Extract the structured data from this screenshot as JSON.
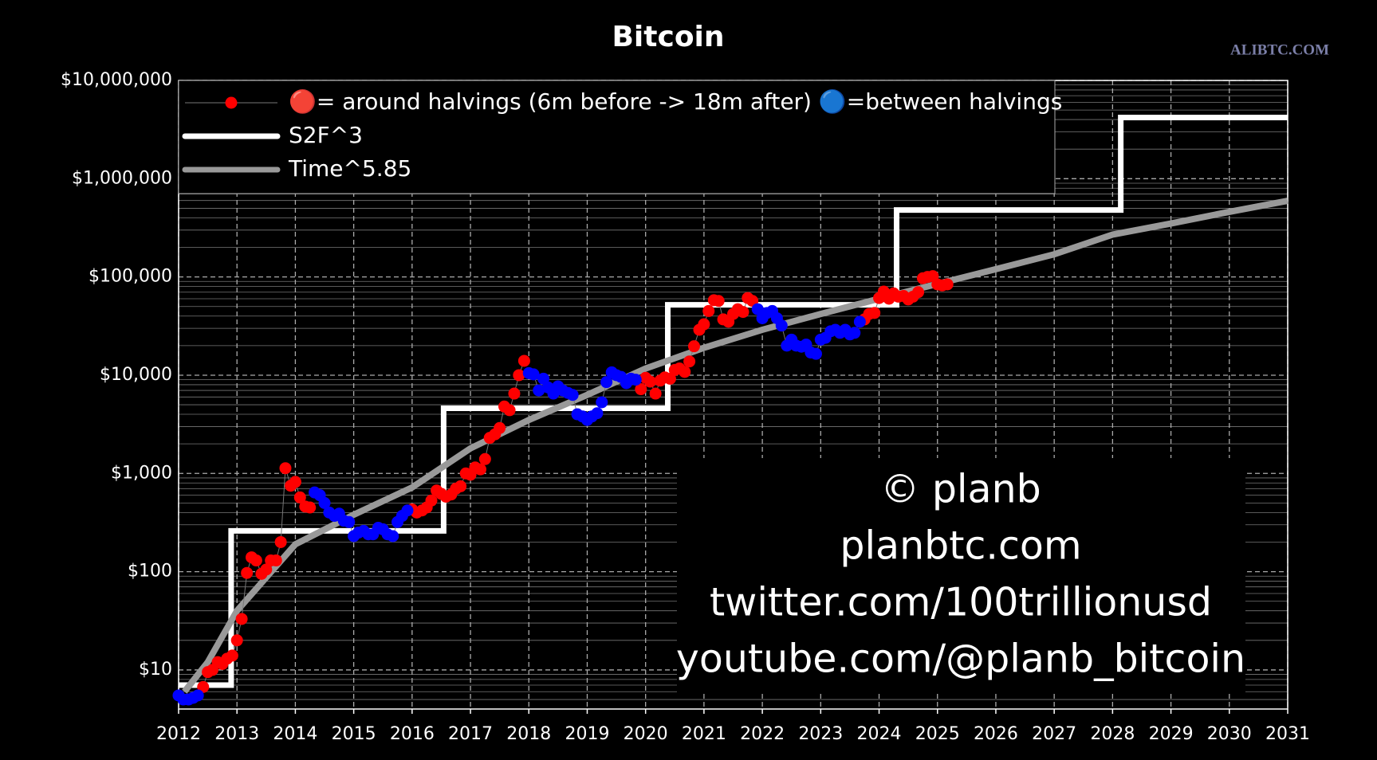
{
  "chart_data": {
    "type": "scatter",
    "title": "Bitcoin",
    "watermark": "ALIBTC.COM",
    "log_scale_y": true,
    "grid": true,
    "minor_grid": true,
    "legend_position": "upper left",
    "xlim": [
      2012,
      2031
    ],
    "xticks": [
      2012,
      2013,
      2014,
      2015,
      2016,
      2017,
      2018,
      2019,
      2020,
      2021,
      2022,
      2023,
      2024,
      2025,
      2026,
      2027,
      2028,
      2029,
      2030,
      2031
    ],
    "ylim": [
      4,
      10000000
    ],
    "yticks": [
      {
        "value": 10,
        "label": "$10"
      },
      {
        "value": 100,
        "label": "$100"
      },
      {
        "value": 1000,
        "label": "$1,000"
      },
      {
        "value": 10000,
        "label": "$10,000"
      },
      {
        "value": 100000,
        "label": "$100,000"
      },
      {
        "value": 1000000,
        "label": "$1,000,000"
      },
      {
        "value": 10000000,
        "label": "$10,000,000"
      }
    ],
    "annotations": [
      "© planb",
      "planbtc.com",
      "twitter.com/100trillionusd",
      "youtube.com/@planb_bitcoin"
    ],
    "series": [
      {
        "name": "🔴= around halvings (6m before -> 18m after) 🔵=between halvings",
        "color": "#ff0000",
        "mode": "markers",
        "x": [
          2012.42,
          2012.5,
          2012.58,
          2012.67,
          2012.75,
          2012.83,
          2012.92,
          2013.0,
          2013.08,
          2013.17,
          2013.25,
          2013.33,
          2013.42,
          2013.5,
          2013.58,
          2013.67,
          2013.75,
          2013.83,
          2013.92,
          2014.0,
          2014.08,
          2014.17,
          2014.25,
          null,
          2016.0,
          2016.08,
          2016.17,
          2016.25,
          2016.33,
          2016.42,
          2016.5,
          2016.58,
          2016.67,
          2016.75,
          2016.83,
          2016.92,
          2017.0,
          2017.08,
          2017.17,
          2017.25,
          2017.33,
          2017.42,
          2017.5,
          2017.58,
          2017.67,
          2017.75,
          2017.83,
          2017.92,
          null,
          2019.92,
          2020.0,
          2020.08,
          2020.17,
          2020.25,
          2020.33,
          2020.42,
          2020.5,
          2020.58,
          2020.67,
          2020.75,
          2020.83,
          2020.92,
          2021.0,
          2021.08,
          2021.17,
          2021.25,
          2021.33,
          2021.42,
          2021.5,
          2021.58,
          2021.67,
          2021.75,
          2021.83,
          null,
          2023.75,
          2023.83,
          2023.92,
          2024.0,
          2024.08,
          2024.17,
          2024.25,
          2024.33,
          2024.42,
          2024.5,
          2024.58,
          2024.67,
          2024.75,
          2024.83,
          2024.92,
          2025.0,
          2025.08,
          2025.17
        ],
        "values": [
          6.7,
          9.5,
          10,
          12,
          11.5,
          13,
          14,
          20,
          33,
          97,
          140,
          130,
          95,
          105,
          130,
          130,
          200,
          1130,
          750,
          820,
          570,
          460,
          450,
          null,
          430,
          400,
          420,
          450,
          530,
          670,
          620,
          580,
          610,
          700,
          740,
          1000,
          970,
          1150,
          1100,
          1400,
          2300,
          2500,
          2900,
          4800,
          4400,
          6500,
          10000,
          14000,
          null,
          7200,
          9400,
          8600,
          6500,
          8800,
          9500,
          9200,
          11300,
          11700,
          10800,
          13800,
          19700,
          29000,
          33000,
          45000,
          58000,
          57000,
          37000,
          35000,
          42000,
          47000,
          44000,
          61000,
          57000,
          null,
          37000,
          42000,
          43000,
          61000,
          71000,
          60000,
          68000,
          63000,
          64000,
          59000,
          63000,
          70000,
          97000,
          100000,
          102000,
          84000,
          82000,
          84000
        ]
      },
      {
        "color": "#0000ff",
        "mode": "markers",
        "x": [
          2012.0,
          2012.08,
          2012.17,
          2012.25,
          2012.33,
          null,
          2014.33,
          2014.42,
          2014.5,
          2014.58,
          2014.67,
          2014.75,
          2014.83,
          2014.92,
          2015.0,
          2015.08,
          2015.17,
          2015.25,
          2015.33,
          2015.42,
          2015.5,
          2015.58,
          2015.67,
          2015.75,
          2015.83,
          2015.92,
          null,
          2018.0,
          2018.08,
          2018.17,
          2018.25,
          2018.33,
          2018.42,
          2018.5,
          2018.58,
          2018.67,
          2018.75,
          2018.83,
          2018.92,
          2019.0,
          2019.08,
          2019.17,
          2019.25,
          2019.33,
          2019.42,
          2019.5,
          2019.58,
          2019.67,
          2019.75,
          2019.83,
          null,
          2021.92,
          2022.0,
          2022.08,
          2022.17,
          2022.25,
          2022.33,
          2022.42,
          2022.5,
          2022.58,
          2022.67,
          2022.75,
          2022.83,
          2022.92,
          2023.0,
          2023.08,
          2023.17,
          2023.25,
          2023.33,
          2023.42,
          2023.5,
          2023.58,
          2023.67
        ],
        "values": [
          5.5,
          5,
          5,
          5.2,
          5.5,
          null,
          640,
          600,
          500,
          400,
          370,
          390,
          330,
          320,
          230,
          250,
          260,
          240,
          240,
          280,
          270,
          240,
          230,
          320,
          370,
          420,
          null,
          10500,
          10200,
          7000,
          9200,
          7500,
          6500,
          7700,
          7000,
          6600,
          6300,
          4000,
          3800,
          3500,
          3800,
          4100,
          5300,
          8500,
          10700,
          10000,
          9600,
          8300,
          9200,
          9000,
          null,
          47000,
          38000,
          43000,
          45000,
          38000,
          32000,
          20000,
          23000,
          20000,
          19500,
          20500,
          17000,
          16500,
          23000,
          24000,
          28000,
          29000,
          27000,
          29000,
          26000,
          27000,
          35000
        ]
      },
      {
        "name": "S2F^3",
        "color": "#ffffff",
        "mode": "line",
        "x": [
          2012,
          2012.9,
          2012.9,
          2016.54,
          2016.54,
          2020.38,
          2020.38,
          2024.3,
          2024.3,
          2028.14,
          2028.14,
          2031
        ],
        "values": [
          7,
          7,
          260,
          260,
          4600,
          4600,
          52000,
          52000,
          480000,
          480000,
          4200000,
          4200000
        ]
      },
      {
        "name": "Time^5.85",
        "color": "#999999",
        "mode": "line",
        "x": [
          2012.1,
          2012.5,
          2013,
          2014,
          2015,
          2016,
          2017,
          2018,
          2019,
          2020,
          2021,
          2022,
          2023,
          2024,
          2025,
          2026,
          2027,
          2028,
          2029,
          2030,
          2031
        ],
        "values": [
          6,
          12,
          40,
          190,
          380,
          720,
          1800,
          3500,
          6300,
          11700,
          19000,
          29000,
          42000,
          60000,
          85000,
          120000,
          170000,
          270000,
          350000,
          460000,
          596000
        ]
      }
    ]
  }
}
